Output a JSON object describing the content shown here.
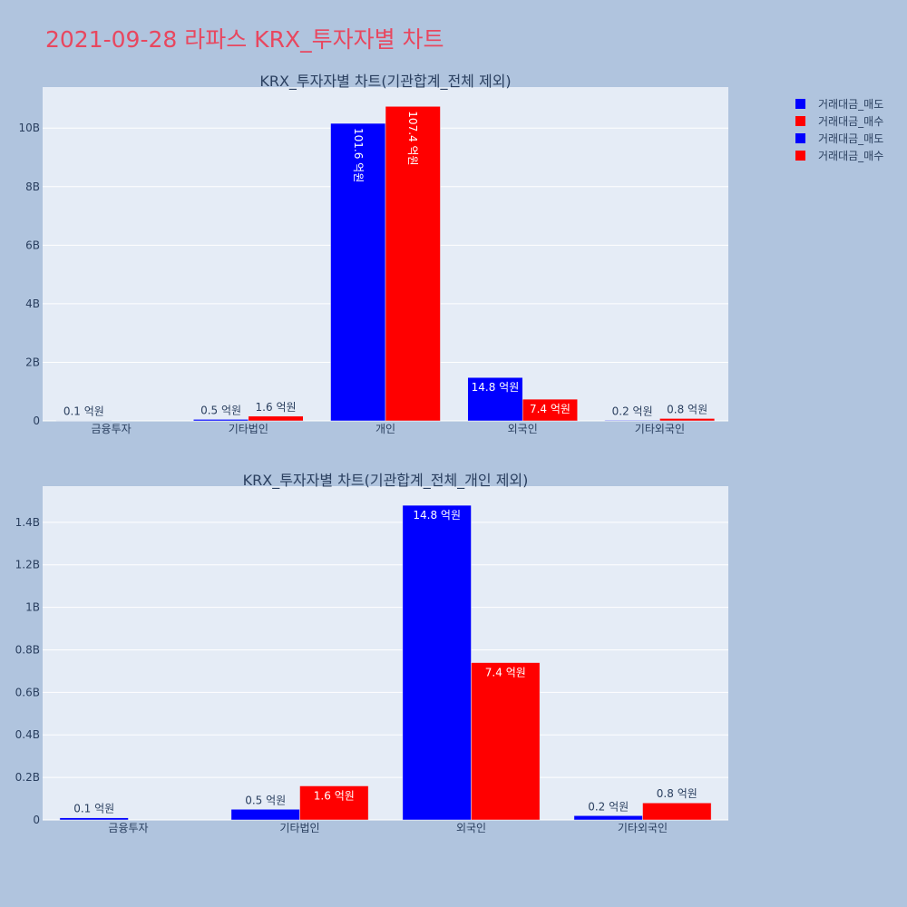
{
  "page": {
    "title": "2021-09-28 라파스 KRX_투자자별 차트"
  },
  "legend": [
    {
      "label": "거래대금_매도",
      "color": "#0000ff"
    },
    {
      "label": "거래대금_매수",
      "color": "#ff0000"
    },
    {
      "label": "거래대금_매도",
      "color": "#0000ff"
    },
    {
      "label": "거래대금_매수",
      "color": "#ff0000"
    }
  ],
  "chart_data": [
    {
      "type": "bar",
      "title": "KRX_투자자별 차트(기관합계_전체 제외)",
      "categories": [
        "금융투자",
        "기타법인",
        "개인",
        "외국인",
        "기타외국인"
      ],
      "ylim": [
        0,
        11400000000
      ],
      "y_ticks": [
        0,
        2000000000,
        4000000000,
        6000000000,
        8000000000,
        10000000000
      ],
      "y_tick_labels": [
        "0",
        "2B",
        "4B",
        "6B",
        "8B",
        "10B"
      ],
      "grid": true,
      "legend_position": "top-right",
      "series": [
        {
          "name": "거래대금_매도",
          "color": "#0000ff",
          "values": [
            10000000,
            50000000,
            10160000000,
            1480000000,
            20000000
          ],
          "labels": [
            "0.1 억원",
            "0.5 억원",
            "101.6 억원",
            "14.8 억원",
            "0.2 억원"
          ]
        },
        {
          "name": "거래대금_매수",
          "color": "#ff0000",
          "values": [
            0,
            160000000,
            10740000000,
            740000000,
            80000000
          ],
          "labels": [
            "",
            "1.6 억원",
            "107.4 억원",
            "7.4 억원",
            "0.8 억원"
          ]
        }
      ]
    },
    {
      "type": "bar",
      "title": "KRX_투자자별 차트(기관합계_전체_개인 제외)",
      "categories": [
        "금융투자",
        "기타법인",
        "외국인",
        "기타외국인"
      ],
      "ylim": [
        0,
        1570000000
      ],
      "y_ticks": [
        0,
        200000000,
        400000000,
        600000000,
        800000000,
        1000000000,
        1200000000,
        1400000000
      ],
      "y_tick_labels": [
        "0",
        "0.2B",
        "0.4B",
        "0.6B",
        "0.8B",
        "1B",
        "1.2B",
        "1.4B"
      ],
      "grid": true,
      "series": [
        {
          "name": "거래대금_매도",
          "color": "#0000ff",
          "values": [
            10000000,
            50000000,
            1480000000,
            20000000
          ],
          "labels": [
            "0.1 억원",
            "0.5 억원",
            "14.8 억원",
            "0.2 억원"
          ]
        },
        {
          "name": "거래대금_매수",
          "color": "#ff0000",
          "values": [
            0,
            160000000,
            740000000,
            80000000
          ],
          "labels": [
            "",
            "1.6 억원",
            "7.4 억원",
            "0.8 억원"
          ]
        }
      ]
    }
  ]
}
